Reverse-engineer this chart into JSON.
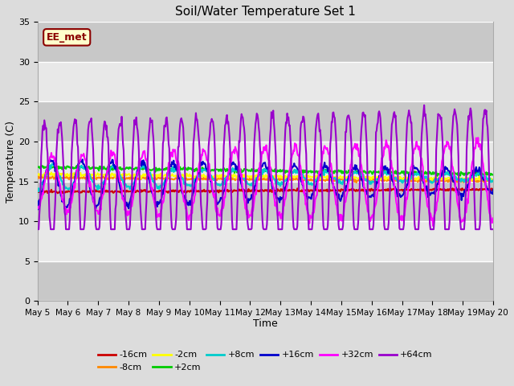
{
  "title": "Soil/Water Temperature Set 1",
  "xlabel": "Time",
  "ylabel": "Temperature (C)",
  "ylim": [
    0,
    35
  ],
  "yticks": [
    0,
    5,
    10,
    15,
    20,
    25,
    30,
    35
  ],
  "x_labels": [
    "May 5",
    "May 6",
    "May 7",
    "May 8",
    "May 9",
    "May 10",
    "May 11",
    "May 12",
    "May 13",
    "May 14",
    "May 15",
    "May 16",
    "May 17",
    "May 18",
    "May 19",
    "May 20"
  ],
  "annotation_text": "EE_met",
  "annotation_bg": "#ffffcc",
  "annotation_border": "#8B0000",
  "annotation_text_color": "#8B0000",
  "background_color": "#dcdcdc",
  "plot_bg": "#dcdcdc",
  "stripe_light": "#e8e8e8",
  "stripe_dark": "#c8c8c8",
  "series_colors": {
    "-16cm": "#cc0000",
    "-8cm": "#ff8800",
    "-2cm": "#ffff00",
    "+2cm": "#00cc00",
    "+8cm": "#00cccc",
    "+16cm": "#0000cc",
    "+32cm": "#ff00ff",
    "+64cm": "#9900cc"
  },
  "n_days": 15,
  "n_pts_per_day": 48,
  "base_temp": 14.2,
  "base_slope": 0.02
}
